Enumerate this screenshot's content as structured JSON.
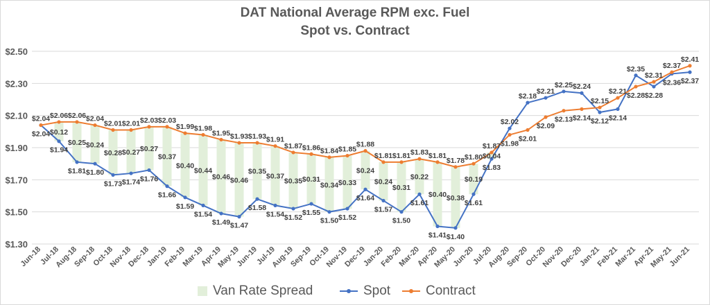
{
  "chart_data": {
    "type": "line",
    "title": "DAT National Average RPM exc. Fuel",
    "subtitle": "Spot vs. Contract",
    "categories": [
      "Jun-18",
      "Jul-18",
      "Aug-18",
      "Sep-18",
      "Oct-18",
      "Nov-18",
      "Dec-18",
      "Jan-19",
      "Feb-19",
      "Mar-19",
      "Apr-19",
      "May-19",
      "Jun-19",
      "Jul-19",
      "Aug-19",
      "Sep-19",
      "Oct-19",
      "Nov-19",
      "Dec-19",
      "Jan-20",
      "Feb-20",
      "Mar-20",
      "Apr-20",
      "May-20",
      "Jun-20",
      "Jul-20",
      "Aug-20",
      "Sep-20",
      "Oct-20",
      "Nov-20",
      "Dec-20",
      "Jan-21",
      "Feb-21",
      "Mar-21",
      "Apr-21",
      "May-21",
      "Jun-21"
    ],
    "ylim": [
      1.3,
      2.5
    ],
    "yticks": [
      1.3,
      1.5,
      1.7,
      1.9,
      2.1,
      2.3,
      2.5
    ],
    "ytick_labels": [
      "$1.30",
      "$1.50",
      "$1.70",
      "$1.90",
      "$2.10",
      "$2.30",
      "$2.50"
    ],
    "grid": true,
    "legend": "bottom",
    "series": [
      {
        "name": "Van Rate Spread",
        "kind": "band",
        "color": "#e2efda",
        "values": [
          null,
          0.12,
          0.25,
          0.24,
          0.28,
          0.27,
          0.27,
          0.37,
          0.4,
          0.44,
          0.46,
          0.46,
          0.35,
          0.37,
          0.35,
          0.31,
          0.34,
          0.33,
          0.24,
          0.24,
          0.31,
          0.22,
          0.4,
          0.38,
          0.19,
          0.04,
          null,
          null,
          null,
          null,
          null,
          null,
          null,
          null,
          null,
          null,
          null
        ],
        "labels": [
          "",
          "$0.12",
          "$0.25",
          "$0.24",
          "$0.28",
          "$0.27",
          "$0.27",
          "$0.37",
          "$0.40",
          "$0.44",
          "$0.46",
          "$0.46",
          "$0.35",
          "$0.37",
          "$0.35",
          "$0.31",
          "$0.34",
          "$0.33",
          "$0.24",
          "$0.24",
          "$0.31",
          "$0.22",
          "$0.40",
          "$0.38",
          "$0.19",
          "$0.04",
          "",
          "",
          "",
          "",
          "",
          "",
          "",
          "",
          "",
          "",
          ""
        ]
      },
      {
        "name": "Spot",
        "color": "#4472c4",
        "values": [
          2.04,
          1.94,
          1.81,
          1.8,
          1.73,
          1.74,
          1.76,
          1.66,
          1.59,
          1.54,
          1.49,
          1.47,
          1.58,
          1.54,
          1.52,
          1.55,
          1.5,
          1.52,
          1.64,
          1.57,
          1.5,
          1.61,
          1.41,
          1.4,
          1.61,
          1.83,
          2.02,
          2.18,
          2.21,
          2.25,
          2.24,
          2.12,
          2.14,
          2.35,
          2.28,
          2.36,
          2.37
        ],
        "labels": [
          "$2.04",
          "$1.94",
          "$1.81",
          "$1.80",
          "$1.73",
          "$1.74",
          "$1.76",
          "$1.66",
          "$1.59",
          "$1.54",
          "$1.49",
          "$1.47",
          "$1.58",
          "$1.54",
          "$1.52",
          "$1.55",
          "$1.50",
          "$1.52",
          "$1.64",
          "$1.57",
          "$1.50",
          "$1.61",
          "$1.41",
          "$1.40",
          "$1.61",
          "$1.83",
          "$2.02",
          "$2.18",
          "$2.21",
          "$2.25",
          "$2.24",
          "$2.12",
          "$2.14",
          "$2.35",
          "$2.28",
          "$2.36",
          "$2.37"
        ]
      },
      {
        "name": "Contract",
        "color": "#ed7d31",
        "values": [
          2.04,
          2.06,
          2.06,
          2.04,
          2.01,
          2.01,
          2.03,
          2.03,
          1.99,
          1.98,
          1.95,
          1.93,
          1.93,
          1.91,
          1.87,
          1.86,
          1.84,
          1.85,
          1.88,
          1.81,
          1.81,
          1.83,
          1.81,
          1.78,
          1.8,
          1.87,
          1.98,
          2.01,
          2.09,
          2.13,
          2.14,
          2.15,
          2.21,
          2.28,
          2.31,
          2.37,
          2.41
        ],
        "labels": [
          "$2.04",
          "$2.06",
          "$2.06",
          "$2.04",
          "$2.01",
          "$2.01",
          "$2.03",
          "$2.03",
          "$1.99",
          "$1.98",
          "$1.95",
          "$1.93",
          "$1.93",
          "$1.91",
          "$1.87",
          "$1.86",
          "$1.84",
          "$1.85",
          "$1.88",
          "$1.81",
          "$1.81",
          "$1.83",
          "$1.81",
          "$1.78",
          "$1.80",
          "$1.87",
          "$1.98",
          "$2.01",
          "$2.09",
          "$2.13",
          "$2.14",
          "$2.15",
          "$2.21",
          "$2.28",
          "$2.31",
          "$2.37",
          "$2.41"
        ]
      }
    ]
  }
}
